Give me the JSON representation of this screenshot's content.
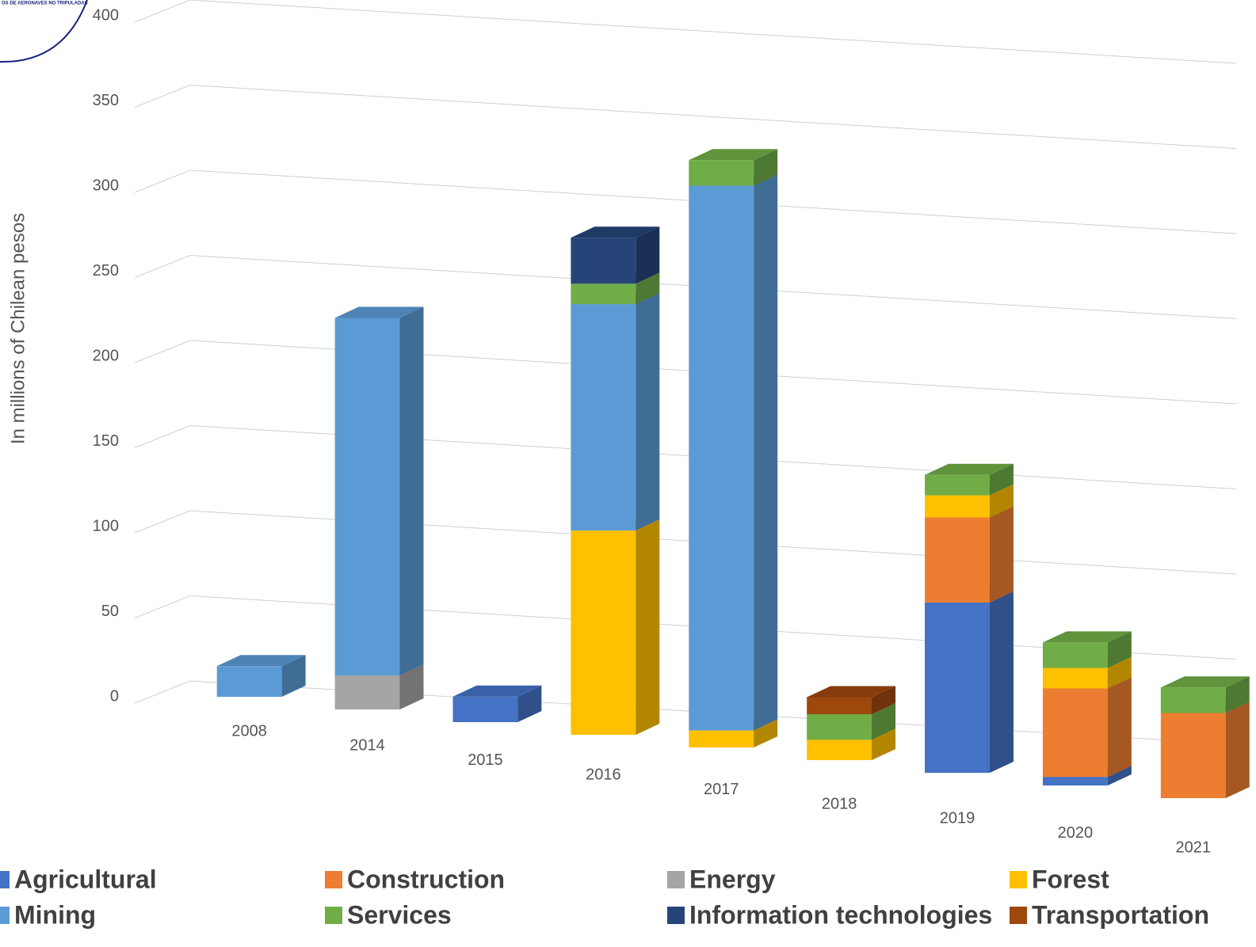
{
  "logo_text": "OS DE AERONAVES NO TRIPULADAS",
  "chart_data": {
    "type": "bar3d",
    "stacked": true,
    "y_label": "In millions of Chilean pesos",
    "categories": [
      "2008",
      "2014",
      "2015",
      "2016",
      "2017",
      "2018",
      "2019",
      "2020",
      "2021"
    ],
    "ylim": [
      0,
      400
    ],
    "yticks": [
      0,
      50,
      100,
      150,
      200,
      250,
      300,
      350,
      400
    ],
    "grid": true,
    "series": [
      {
        "name": "Agricultural",
        "color": "#4472c4",
        "values": [
          null,
          null,
          15,
          null,
          null,
          null,
          100,
          5,
          null
        ]
      },
      {
        "name": "Construction",
        "color": "#ed7d31",
        "values": [
          null,
          null,
          null,
          null,
          null,
          null,
          50,
          52,
          50
        ]
      },
      {
        "name": "Energy",
        "color": "#a5a5a5",
        "values": [
          null,
          20,
          null,
          null,
          null,
          null,
          null,
          null,
          null
        ]
      },
      {
        "name": "Forest",
        "color": "#ffc000",
        "values": [
          null,
          null,
          null,
          120,
          10,
          12,
          13,
          12,
          null
        ]
      },
      {
        "name": "Mining",
        "color": "#5b9bd5",
        "values": [
          18,
          210,
          null,
          133,
          320,
          null,
          null,
          null,
          null
        ]
      },
      {
        "name": "Services",
        "color": "#70ad47",
        "values": [
          null,
          null,
          null,
          12,
          15,
          15,
          12,
          15,
          15
        ]
      },
      {
        "name": "Information technologies",
        "color": "#264478",
        "values": [
          null,
          null,
          null,
          27,
          null,
          null,
          null,
          null,
          null
        ]
      },
      {
        "name": "Transportation",
        "color": "#9e480e",
        "values": [
          null,
          null,
          null,
          null,
          null,
          10,
          null,
          null,
          null
        ]
      }
    ]
  }
}
